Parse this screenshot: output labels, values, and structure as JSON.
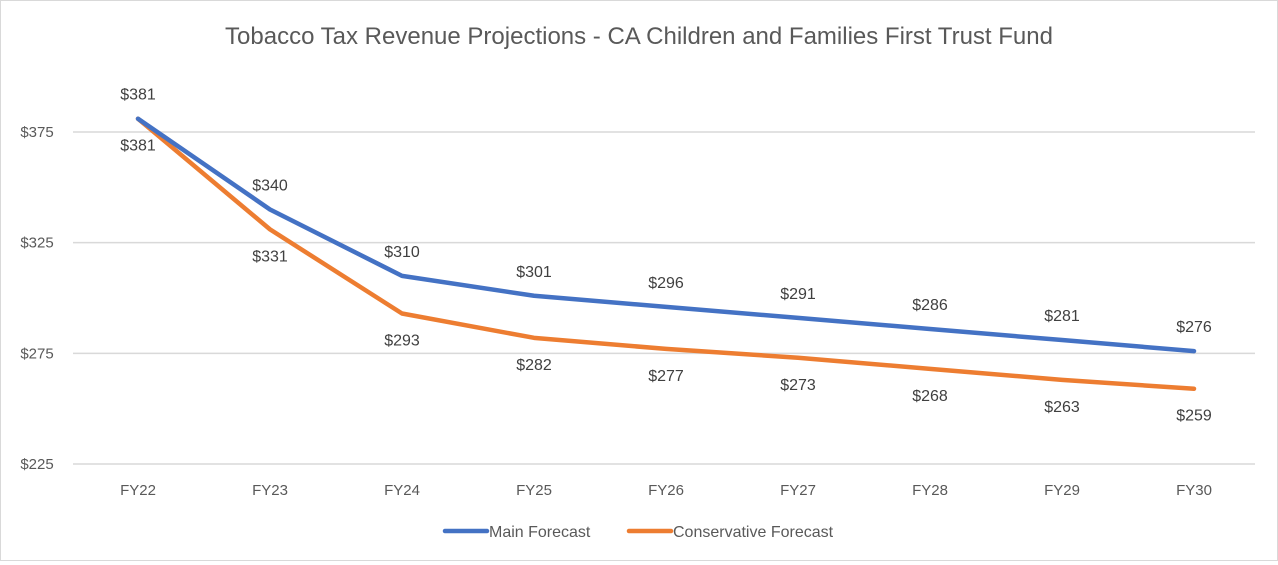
{
  "chart_data": {
    "type": "line",
    "title": "Tobacco Tax Revenue Projections - CA Children and Families First Trust Fund",
    "xlabel": "",
    "ylabel": "",
    "categories": [
      "FY22",
      "FY23",
      "FY24",
      "FY25",
      "FY26",
      "FY27",
      "FY28",
      "FY29",
      "FY30"
    ],
    "ylim": [
      225,
      400
    ],
    "yticks": [
      225,
      275,
      325,
      375
    ],
    "ytick_labels": [
      "$225",
      "$275",
      "$325",
      "$375"
    ],
    "grid": true,
    "legend_position": "bottom",
    "series": [
      {
        "name": "Main Forecast",
        "color": "#4472C4",
        "values": [
          381,
          340,
          310,
          301,
          296,
          291,
          286,
          281,
          276
        ],
        "labels": [
          "$381",
          "$340",
          "$310",
          "$301",
          "$296",
          "$291",
          "$286",
          "$281",
          "$276"
        ],
        "label_position": "above"
      },
      {
        "name": "Conservative Forecast",
        "color": "#ED7D31",
        "values": [
          381,
          331,
          293,
          282,
          277,
          273,
          268,
          263,
          259
        ],
        "labels": [
          "$381",
          "$331",
          "$293",
          "$282",
          "$277",
          "$273",
          "$268",
          "$263",
          "$259"
        ],
        "label_position": "below"
      }
    ]
  }
}
